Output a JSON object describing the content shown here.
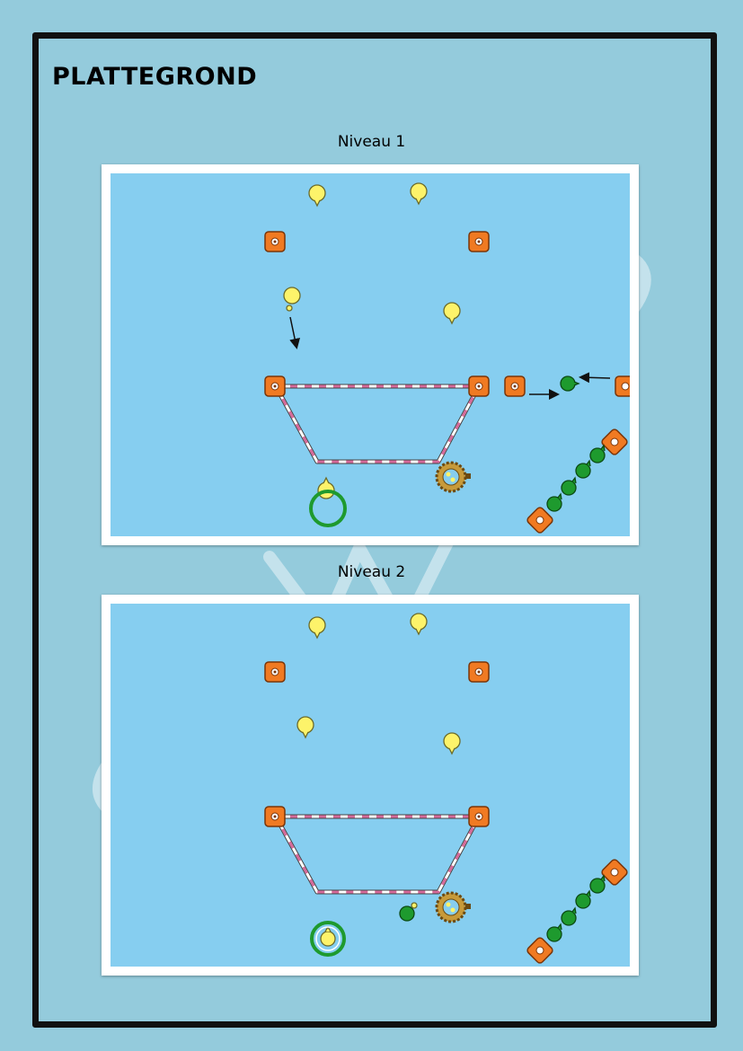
{
  "page": {
    "title": "PLATTEGROND",
    "background": "#94cbdc",
    "field_color": "#86cef0"
  },
  "colors": {
    "player": "#fdf36a",
    "cone": "#f07a22",
    "catcher": "#1e9a2e",
    "beam_stripe": "#d66a9a"
  },
  "levels": [
    {
      "title": "Niveau 1"
    },
    {
      "title": "Niveau 2"
    }
  ],
  "icons": [
    "player-icon",
    "cone-icon",
    "catcher-icon",
    "hoop-icon",
    "rope-coil-icon",
    "arrow-icon",
    "beam-icon"
  ]
}
